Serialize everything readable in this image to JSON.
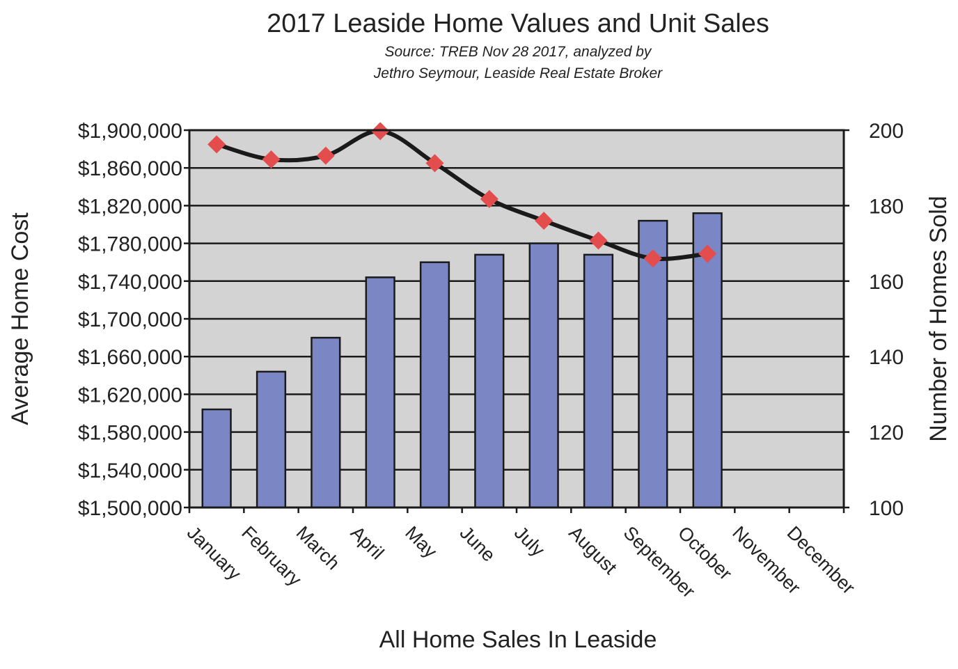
{
  "chart_data": {
    "type": "bar",
    "title": "2017 Leaside Home Values and Unit Sales",
    "subtitle_lines": [
      "Source: TREB Nov 28 2017, analyzed by",
      "Jethro Seymour, Leaside Real Estate Broker"
    ],
    "xlabel": "All Home Sales In Leaside",
    "ylabel_left": "Average Home Cost",
    "ylabel_right": "Number of Homes Sold",
    "categories": [
      "January",
      "February",
      "March",
      "April",
      "May",
      "June",
      "July",
      "August",
      "September",
      "October",
      "November",
      "December"
    ],
    "left_axis": {
      "ylim": [
        1500000,
        1900000
      ],
      "ticks": [
        1500000,
        1540000,
        1580000,
        1620000,
        1660000,
        1700000,
        1740000,
        1780000,
        1820000,
        1860000,
        1900000
      ],
      "tick_labels": [
        "$1,500,000",
        "$1,540,000",
        "$1,580,000",
        "$1,620,000",
        "$1,660,000",
        "$1,700,000",
        "$1,740,000",
        "$1,780,000",
        "$1,820,000",
        "$1,860,000",
        "$1,900,000"
      ]
    },
    "right_axis": {
      "ylim": [
        100,
        200
      ],
      "ticks": [
        100,
        120,
        140,
        160,
        180,
        200
      ],
      "tick_labels": [
        "100",
        "120",
        "140",
        "160",
        "180",
        "200"
      ]
    },
    "series": [
      {
        "kind": "bar",
        "axis": "right",
        "color": "#7b86c4",
        "values": [
          126,
          136,
          145,
          161,
          165,
          167,
          170,
          167,
          176,
          178,
          null,
          null
        ]
      },
      {
        "kind": "line",
        "axis": "left",
        "color": "#1a1a1a",
        "marker_color": "#e34d4d",
        "marker": "diamond",
        "smooth": true,
        "values": [
          1885000,
          1869000,
          1873000,
          1899000,
          1865000,
          1827000,
          1804000,
          1783000,
          1764000,
          1769000,
          null,
          null
        ]
      }
    ],
    "grid": true,
    "plot_background": "#d3d3d3",
    "legend": "none"
  }
}
